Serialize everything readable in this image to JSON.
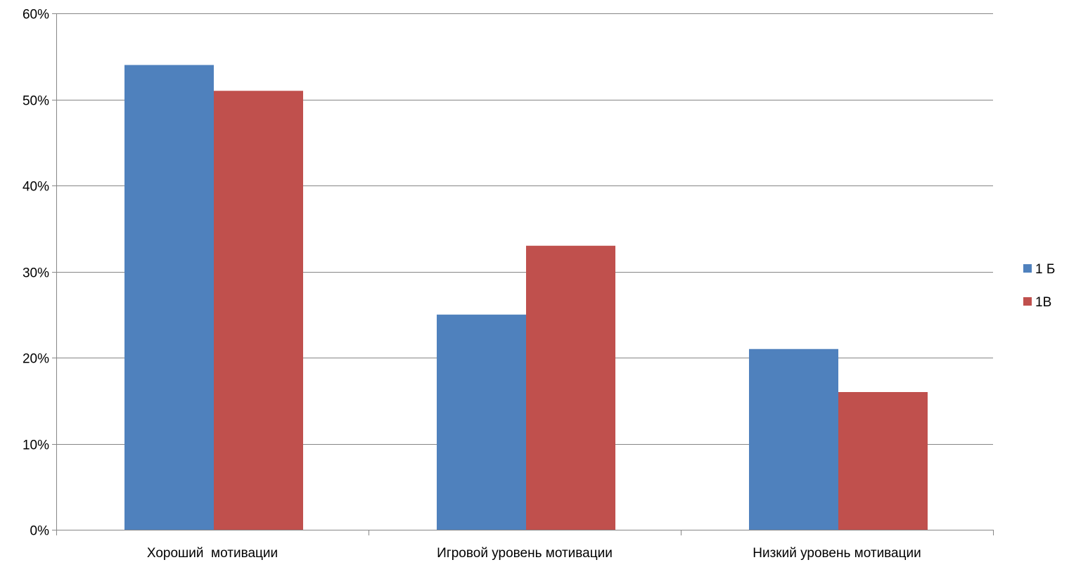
{
  "chart_data": {
    "type": "bar",
    "categories": [
      "Хороший  мотивации",
      "Игровой уровень мотивации",
      "Низкий уровень мотивации"
    ],
    "series": [
      {
        "name": "1 Б",
        "values": [
          54,
          25,
          21
        ],
        "color": "#4f81bd"
      },
      {
        "name": "1В",
        "values": [
          51,
          33,
          16
        ],
        "color": "#c0504d"
      }
    ],
    "ylim": [
      0,
      60
    ],
    "yticks": [
      0,
      10,
      20,
      30,
      40,
      50,
      60
    ],
    "ytick_labels": [
      "0%",
      "10%",
      "20%",
      "30%",
      "40%",
      "50%",
      "60%"
    ],
    "grid": true,
    "legend_position": "right",
    "colors": {
      "grid": "#868686",
      "axis": "#868686"
    }
  }
}
